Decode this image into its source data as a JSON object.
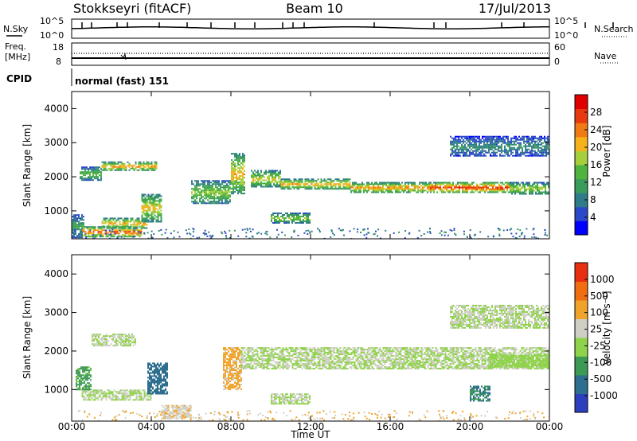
{
  "header": {
    "station": "Stokkseyri (fitACF)",
    "beam": "Beam 10",
    "date": "17/Jul/2013"
  },
  "nsky_panel": {
    "left_label": "N.Sky",
    "right_label": "N.Search",
    "top_tick": "10^5",
    "bottom_tick": "10^0"
  },
  "freq_panel": {
    "label_line1": "Freq.",
    "label_line2": "[MHz]",
    "left_ticks": [
      "18",
      "8"
    ],
    "right_ticks": [
      "60",
      "0"
    ],
    "right_label": "Nave"
  },
  "cpid": {
    "label": "CPID",
    "value": "normal (fast) 151"
  },
  "power_panel": {
    "ylabel": "Slant Range [km]",
    "yticks": [
      "4000",
      "3000",
      "2000",
      "1000"
    ],
    "colorbar_label": "Power [dB]",
    "colorbar_ticks": [
      "28",
      "24",
      "20",
      "16",
      "12",
      "8",
      "4"
    ],
    "colors": [
      "#0000ff",
      "#2b48c8",
      "#2e7b8a",
      "#3a9c5a",
      "#4fb33f",
      "#a7cf3b",
      "#f5b21b",
      "#f07a14",
      "#e83a10",
      "#e10000"
    ]
  },
  "velocity_panel": {
    "ylabel": "Slant Range [km]",
    "yticks": [
      "4000",
      "3000",
      "2000",
      "1000"
    ],
    "colorbar_label": "Velocity [m s⁻¹]",
    "colorbar_ticks": [
      "1000",
      "500",
      "100",
      "25",
      "-25",
      "-100",
      "-500",
      "-1000"
    ],
    "colors": [
      "#2b3fbf",
      "#2e6e8e",
      "#3c9a55",
      "#8fd34a",
      "#cfcfc6",
      "#f0a32a",
      "#f06d10",
      "#e83010"
    ]
  },
  "xaxis": {
    "label": "Time UT",
    "ticks": [
      "00:00",
      "04:00",
      "08:00",
      "12:00",
      "16:00",
      "20:00",
      "00:00"
    ]
  },
  "chart_data": [
    {
      "type": "heatmap",
      "title": "Power",
      "xlabel": "Time UT",
      "ylabel": "Slant Range [km]",
      "xlim": [
        0,
        24
      ],
      "ylim": [
        180,
        4500
      ],
      "zlim": [
        0,
        30
      ],
      "z_unit": "dB",
      "bands": [
        {
          "t": [
            0.0,
            0.6
          ],
          "r": [
            200,
            900
          ],
          "z": 10
        },
        {
          "t": [
            0.5,
            3.5
          ],
          "r": [
            250,
            550
          ],
          "z": 22
        },
        {
          "t": [
            1.5,
            3.8
          ],
          "r": [
            500,
            800
          ],
          "z": 18
        },
        {
          "t": [
            0.4,
            1.5
          ],
          "r": [
            1900,
            2300
          ],
          "z": 12
        },
        {
          "t": [
            1.5,
            4.3
          ],
          "r": [
            2200,
            2450
          ],
          "z": 19
        },
        {
          "t": [
            3.5,
            4.5
          ],
          "r": [
            700,
            1500
          ],
          "z": 17
        },
        {
          "t": [
            6.0,
            8.0
          ],
          "r": [
            1200,
            1900
          ],
          "z": 14
        },
        {
          "t": [
            8.0,
            8.7
          ],
          "r": [
            1500,
            2700
          ],
          "z": 18
        },
        {
          "t": [
            9.0,
            10.5
          ],
          "r": [
            1700,
            2200
          ],
          "z": 16
        },
        {
          "t": [
            10.5,
            14.0
          ],
          "r": [
            1650,
            1950
          ],
          "z": 18
        },
        {
          "t": [
            14.0,
            18.0
          ],
          "r": [
            1550,
            1850
          ],
          "z": 19
        },
        {
          "t": [
            18.0,
            22.0
          ],
          "r": [
            1550,
            1850
          ],
          "z": 23
        },
        {
          "t": [
            22.0,
            24.0
          ],
          "r": [
            1500,
            1850
          ],
          "z": 15
        },
        {
          "t": [
            10.0,
            12.0
          ],
          "r": [
            650,
            950
          ],
          "z": 14
        },
        {
          "t": [
            19.0,
            24.0
          ],
          "r": [
            2600,
            3200
          ],
          "z": 8
        }
      ]
    },
    {
      "type": "heatmap",
      "title": "Velocity",
      "xlabel": "Time UT",
      "ylabel": "Slant Range [km]",
      "xlim": [
        0,
        24
      ],
      "ylim": [
        180,
        4500
      ],
      "zlim": [
        -1000,
        1000
      ],
      "z_unit": "m s⁻¹",
      "bands": [
        {
          "t": [
            0.5,
            4.0
          ],
          "r": [
            750,
            1000
          ],
          "z": 0
        },
        {
          "t": [
            1.0,
            3.2
          ],
          "r": [
            2150,
            2450
          ],
          "z": 0
        },
        {
          "t": [
            0.2,
            1.0
          ],
          "r": [
            1000,
            1600
          ],
          "z": -300
        },
        {
          "t": [
            3.8,
            4.8
          ],
          "r": [
            900,
            1700
          ],
          "z": -600
        },
        {
          "t": [
            4.5,
            6.0
          ],
          "r": [
            250,
            600
          ],
          "z": 200
        },
        {
          "t": [
            7.6,
            8.5
          ],
          "r": [
            1000,
            2100
          ],
          "z": 300
        },
        {
          "t": [
            8.5,
            24.0
          ],
          "r": [
            1550,
            2100
          ],
          "z": 0
        },
        {
          "t": [
            19.0,
            24.0
          ],
          "r": [
            2600,
            3200
          ],
          "z": 0
        },
        {
          "t": [
            10.0,
            12.0
          ],
          "r": [
            650,
            900
          ],
          "z": 0
        },
        {
          "t": [
            20.0,
            21.0
          ],
          "r": [
            700,
            1100
          ],
          "z": -500
        },
        {
          "t": [
            21.0,
            24.0
          ],
          "r": [
            1600,
            1900
          ],
          "z": -150
        }
      ]
    }
  ]
}
